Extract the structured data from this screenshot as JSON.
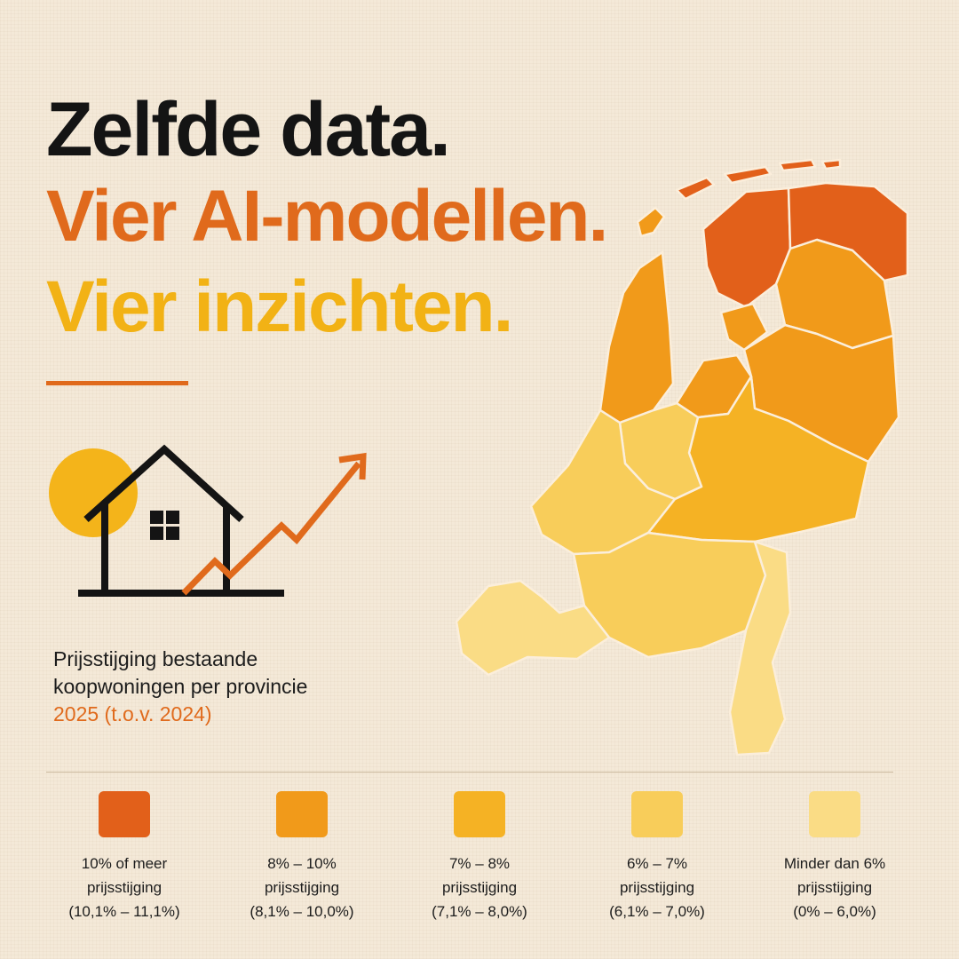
{
  "headline": {
    "line1": "Zelfde data.",
    "line2": "Vier AI-modellen.",
    "line3": "Vier inzichten."
  },
  "subtitle": {
    "line1": "Prijsstijging bestaande",
    "line2": "koopwoningen per provincie",
    "year": "2025 (t.o.v. 2024)"
  },
  "colors": {
    "accent_orange": "#e06a1c",
    "accent_yellow": "#f2b215",
    "text_dark": "#141414"
  },
  "icons": [
    "sun-icon",
    "house-icon",
    "rising-arrow-icon"
  ],
  "map": {
    "country": "Nederland",
    "provinces": [
      {
        "name": "Friesland",
        "category": "10% of meer",
        "color": "#e2601a"
      },
      {
        "name": "Groningen",
        "category": "10% of meer",
        "color": "#e2601a"
      },
      {
        "name": "Drenthe",
        "category": "8% – 10%",
        "color": "#f19a1a"
      },
      {
        "name": "Noord-Holland",
        "category": "8% – 10%",
        "color": "#f19a1a"
      },
      {
        "name": "Flevoland",
        "category": "8% – 10%",
        "color": "#f19a1a"
      },
      {
        "name": "Overijssel",
        "category": "8% – 10%",
        "color": "#f19a1a"
      },
      {
        "name": "Gelderland",
        "category": "7% – 8%",
        "color": "#f5b224"
      },
      {
        "name": "Utrecht",
        "category": "6% – 7%",
        "color": "#f8cd5a"
      },
      {
        "name": "Zuid-Holland",
        "category": "6% – 7%",
        "color": "#f8cd5a"
      },
      {
        "name": "Noord-Brabant",
        "category": "6% – 7%",
        "color": "#f8cd5a"
      },
      {
        "name": "Limburg",
        "category": "Minder dan 6%",
        "color": "#fadc85"
      },
      {
        "name": "Zeeland",
        "category": "Minder dan 6%",
        "color": "#fadc85"
      }
    ]
  },
  "legend": [
    {
      "color": "#e2601a",
      "line1": "10% of meer",
      "line2": "prijsstijging",
      "line3": "(10,1% – 11,1%)"
    },
    {
      "color": "#f19a1a",
      "line1": "8% – 10%",
      "line2": "prijsstijging",
      "line3": "(8,1% – 10,0%)"
    },
    {
      "color": "#f5b224",
      "line1": "7% – 8%",
      "line2": "prijsstijging",
      "line3": "(7,1% – 8,0%)"
    },
    {
      "color": "#f8cd5a",
      "line1": "6% – 7%",
      "line2": "prijsstijging",
      "line3": "(6,1% – 7,0%)"
    },
    {
      "color": "#fadc85",
      "line1": "Minder dan 6%",
      "line2": "prijsstijging",
      "line3": "(0% – 6,0%)"
    }
  ]
}
